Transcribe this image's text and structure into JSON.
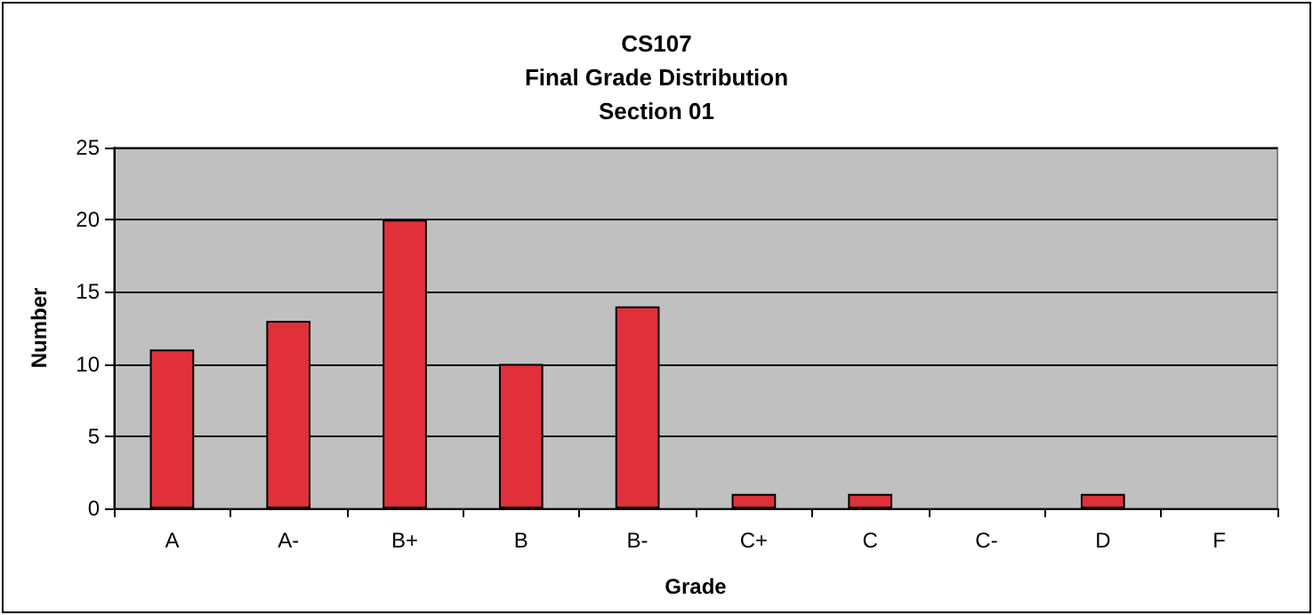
{
  "chart_data": {
    "type": "bar",
    "title": "CS107\nFinal Grade Distribution\nSection 01",
    "xlabel": "Grade",
    "ylabel": "Number",
    "categories": [
      "A",
      "A-",
      "B+",
      "B",
      "B-",
      "C+",
      "C",
      "C-",
      "D",
      "F"
    ],
    "values": [
      11,
      13,
      20,
      10,
      14,
      1,
      1,
      0,
      1,
      0
    ],
    "color": "#e0303a",
    "ylim": [
      0,
      25
    ],
    "yticks": [
      0,
      5,
      10,
      15,
      20,
      25
    ],
    "grid": "y"
  }
}
